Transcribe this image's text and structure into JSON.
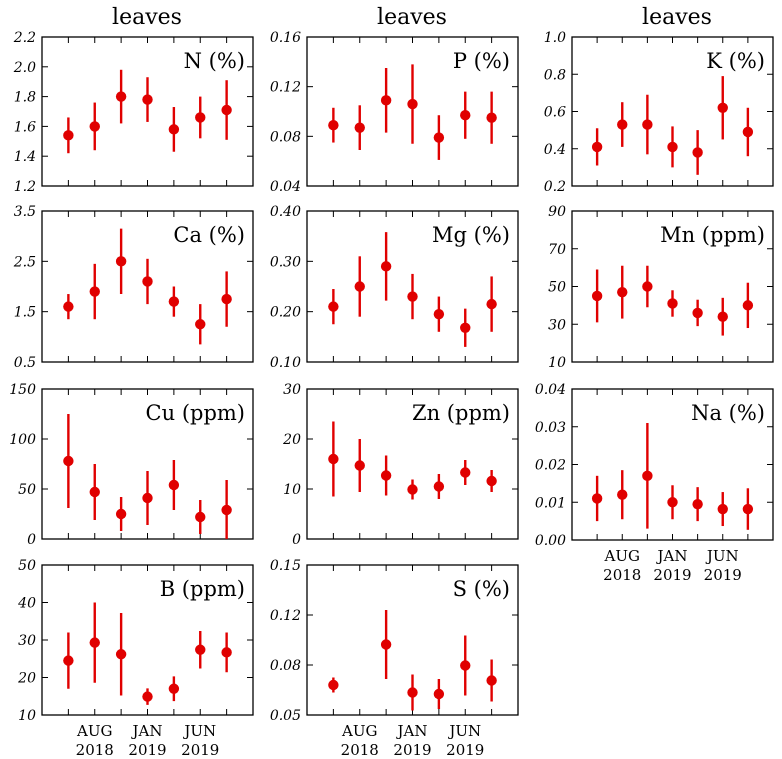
{
  "col_titles": [
    "leaves",
    "leaves",
    "leaves"
  ],
  "x_tick_labels": [
    {
      "month": "AUG",
      "year": "2018"
    },
    {
      "month": "JAN",
      "year": "2019"
    },
    {
      "month": "JUN",
      "year": "2019"
    }
  ],
  "colors": {
    "marker": "#e00000",
    "axes": "#000000"
  },
  "chart_data": [
    {
      "type": "scatter",
      "title": "N (%)",
      "ylim": [
        1.2,
        2.2
      ],
      "yticks": [
        "1.2",
        "1.4",
        "1.6",
        "1.8",
        "2.0",
        "2.2"
      ],
      "series": [
        {
          "y": [
            1.54,
            1.6,
            1.8,
            1.78,
            1.58,
            1.66,
            1.71
          ],
          "err": [
            0.12,
            0.16,
            0.18,
            0.15,
            0.15,
            0.14,
            0.2
          ]
        }
      ]
    },
    {
      "type": "scatter",
      "title": "P (%)",
      "ylim": [
        0.04,
        0.16
      ],
      "yticks": [
        "0.04",
        "0.08",
        "0.12",
        "0.16"
      ],
      "series": [
        {
          "y": [
            0.089,
            0.087,
            0.109,
            0.106,
            0.079,
            0.097,
            0.095
          ],
          "err": [
            0.014,
            0.018,
            0.026,
            0.032,
            0.018,
            0.019,
            0.021
          ]
        }
      ]
    },
    {
      "type": "scatter",
      "title": "K (%)",
      "ylim": [
        0.2,
        1.0
      ],
      "yticks": [
        "0.2",
        "0.4",
        "0.6",
        "0.8",
        "1.0"
      ],
      "series": [
        {
          "y": [
            0.41,
            0.53,
            0.53,
            0.41,
            0.38,
            0.62,
            0.49
          ],
          "err": [
            0.1,
            0.12,
            0.16,
            0.11,
            0.12,
            0.17,
            0.13
          ]
        }
      ]
    },
    {
      "type": "scatter",
      "title": "Ca (%)",
      "ylim": [
        0.5,
        3.5
      ],
      "yticks": [
        "0.5",
        "1.5",
        "2.5",
        "3.5"
      ],
      "series": [
        {
          "y": [
            1.6,
            1.9,
            2.5,
            2.1,
            1.7,
            1.25,
            1.75
          ],
          "err": [
            0.25,
            0.55,
            0.65,
            0.45,
            0.3,
            0.4,
            0.55
          ]
        }
      ]
    },
    {
      "type": "scatter",
      "title": "Mg (%)",
      "ylim": [
        0.1,
        0.4
      ],
      "yticks": [
        "0.10",
        "0.20",
        "0.30",
        "0.40"
      ],
      "series": [
        {
          "y": [
            0.21,
            0.25,
            0.29,
            0.23,
            0.195,
            0.168,
            0.215
          ],
          "err": [
            0.035,
            0.06,
            0.068,
            0.045,
            0.035,
            0.038,
            0.055
          ]
        }
      ]
    },
    {
      "type": "scatter",
      "title": "Mn (ppm)",
      "ylim": [
        10,
        90
      ],
      "yticks": [
        "10",
        "30",
        "50",
        "70",
        "90"
      ],
      "series": [
        {
          "y": [
            45,
            47,
            50,
            41,
            36,
            34,
            40
          ],
          "err": [
            14,
            14,
            11,
            7,
            7,
            10,
            12
          ]
        }
      ]
    },
    {
      "type": "scatter",
      "title": "Cu (ppm)",
      "ylim": [
        0,
        150
      ],
      "yticks": [
        "0",
        "50",
        "100",
        "150"
      ],
      "series": [
        {
          "y": [
            78,
            47,
            25,
            41,
            54,
            22,
            29
          ],
          "err": [
            47,
            28,
            17,
            27,
            25,
            17,
            30
          ]
        }
      ]
    },
    {
      "type": "scatter",
      "title": "Zn (ppm)",
      "ylim": [
        0,
        30
      ],
      "yticks": [
        "0",
        "10",
        "20",
        "30"
      ],
      "series": [
        {
          "y": [
            16,
            14.7,
            12.7,
            9.9,
            10.5,
            13.3,
            11.6
          ],
          "err": [
            7.5,
            5.3,
            4.0,
            2.0,
            2.5,
            2.5,
            2.2
          ]
        }
      ]
    },
    {
      "type": "scatter",
      "title": "Na (%)",
      "ylim": [
        0.0,
        0.04
      ],
      "yticks": [
        "0.00",
        "0.01",
        "0.02",
        "0.03",
        "0.04"
      ],
      "series": [
        {
          "y": [
            0.011,
            0.012,
            0.017,
            0.01,
            0.0095,
            0.0082,
            0.0082
          ],
          "err": [
            0.006,
            0.0065,
            0.014,
            0.0045,
            0.0045,
            0.0045,
            0.0055
          ]
        }
      ]
    },
    {
      "type": "scatter",
      "title": "B (ppm)",
      "ylim": [
        10,
        50
      ],
      "yticks": [
        "10",
        "20",
        "30",
        "40",
        "50"
      ],
      "series": [
        {
          "y": [
            24.5,
            29.3,
            26.2,
            14.9,
            17.0,
            27.4,
            26.7
          ],
          "err": [
            7.5,
            10.7,
            11.0,
            2.2,
            3.3,
            5.0,
            5.3
          ]
        }
      ]
    },
    {
      "type": "scatter",
      "title": "S (%)",
      "ylim": [
        0.05,
        0.15
      ],
      "yticks": [
        "0.05",
        "0.08",
        "0.12",
        "0.15"
      ],
      "series": [
        {
          "y": [
            0.07,
            0.097,
            0.065,
            0.064,
            0.083,
            0.073
          ],
          "err": [
            0.005,
            0.023,
            0.012,
            0.01,
            0.02,
            0.014
          ],
          "x_positions": [
            0,
            2,
            3,
            4,
            5,
            6
          ]
        }
      ]
    }
  ]
}
